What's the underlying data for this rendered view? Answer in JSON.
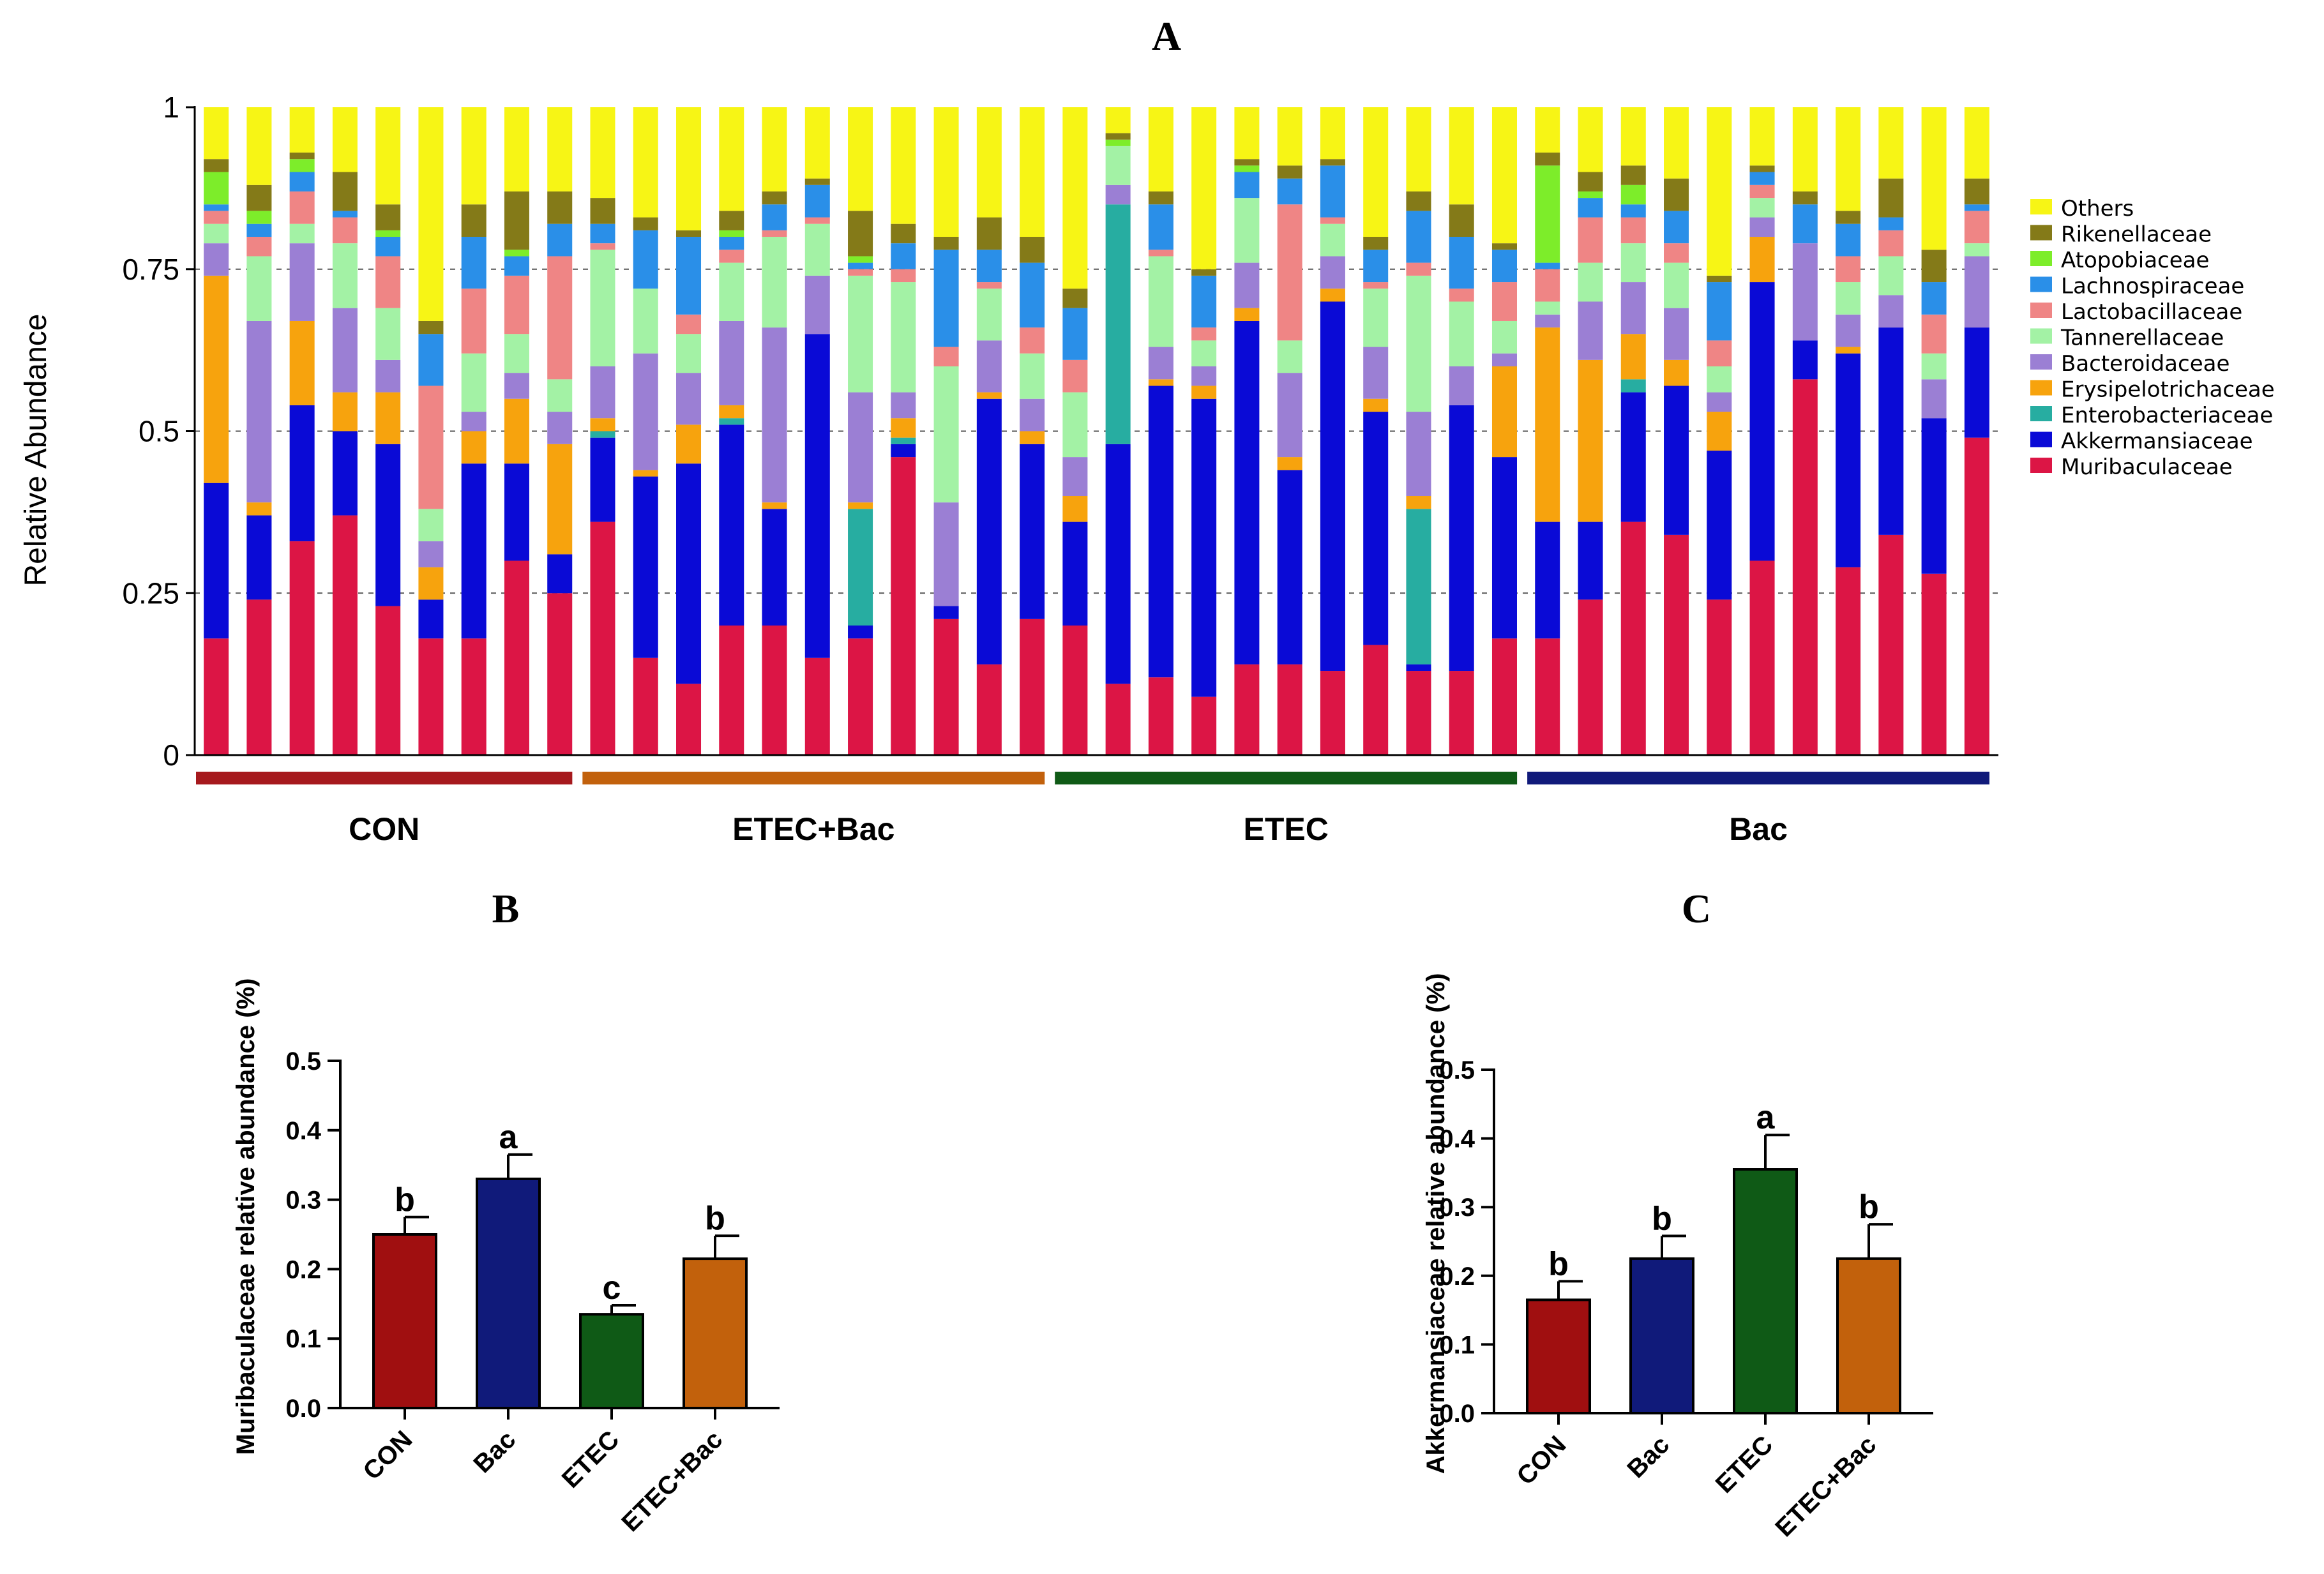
{
  "chart_data": [
    {
      "panel": "A",
      "type": "stacked-bar",
      "ylabel": "Relative Abundance",
      "ylim": [
        0,
        1
      ],
      "yticks": [
        0,
        0.25,
        0.5,
        0.75,
        1
      ],
      "ytick_labels": [
        "0",
        "0.25",
        "0.5",
        "0.75",
        "1"
      ],
      "grid": "dashed",
      "legend_position": "right",
      "groups": [
        {
          "name": "CON",
          "color": "#a6191d",
          "samples": 9
        },
        {
          "name": "ETEC+Bac",
          "color": "#c2610c",
          "samples": 11
        },
        {
          "name": "ETEC",
          "color": "#0f5a16",
          "samples": 11
        },
        {
          "name": "Bac",
          "color": "#101a7a",
          "samples": 11
        }
      ],
      "taxa": [
        {
          "name": "Muribaculaceae",
          "color": "#dc1545"
        },
        {
          "name": "Akkermansiaceae",
          "color": "#0a0ad6"
        },
        {
          "name": "Enterobacteriaceae",
          "color": "#27ada1"
        },
        {
          "name": "Erysipelotrichaceae",
          "color": "#f7a30d"
        },
        {
          "name": "Bacteroidaceae",
          "color": "#9b7fd4"
        },
        {
          "name": "Tannerellaceae",
          "color": "#a3f2a5"
        },
        {
          "name": "Lactobacillaceae",
          "color": "#ef8585"
        },
        {
          "name": "Lachnospiraceae",
          "color": "#2a8fe8"
        },
        {
          "name": "Atopobiaceae",
          "color": "#7ded2a"
        },
        {
          "name": "Rikenellaceae",
          "color": "#847a18"
        },
        {
          "name": "Others",
          "color": "#f7f515"
        }
      ],
      "legend_order": [
        "Others",
        "Rikenellaceae",
        "Atopobiaceae",
        "Lachnospiraceae",
        "Lactobacillaceae",
        "Tannerellaceae",
        "Bacteroidaceae",
        "Erysipelotrichaceae",
        "Enterobacteriaceae",
        "Akkermansiaceae",
        "Muribaculaceae"
      ],
      "samples_cumulative_tops": [
        [
          0.18,
          0.42,
          0.42,
          0.74,
          0.79,
          0.82,
          0.84,
          0.85,
          0.9,
          0.92
        ],
        [
          0.24,
          0.37,
          0.37,
          0.39,
          0.67,
          0.77,
          0.8,
          0.82,
          0.84,
          0.88
        ],
        [
          0.33,
          0.54,
          0.54,
          0.67,
          0.79,
          0.82,
          0.87,
          0.9,
          0.92,
          0.93
        ],
        [
          0.37,
          0.5,
          0.5,
          0.56,
          0.69,
          0.79,
          0.83,
          0.84,
          0.84,
          0.9
        ],
        [
          0.23,
          0.48,
          0.48,
          0.56,
          0.61,
          0.69,
          0.77,
          0.8,
          0.81,
          0.85
        ],
        [
          0.18,
          0.24,
          0.24,
          0.29,
          0.33,
          0.38,
          0.57,
          0.65,
          0.65,
          0.67
        ],
        [
          0.18,
          0.45,
          0.45,
          0.5,
          0.53,
          0.62,
          0.72,
          0.8,
          0.8,
          0.85
        ],
        [
          0.3,
          0.45,
          0.45,
          0.55,
          0.59,
          0.65,
          0.74,
          0.77,
          0.78,
          0.87
        ],
        [
          0.25,
          0.31,
          0.31,
          0.48,
          0.53,
          0.58,
          0.77,
          0.82,
          0.82,
          0.87
        ],
        [
          0.36,
          0.49,
          0.5,
          0.52,
          0.6,
          0.78,
          0.79,
          0.82,
          0.82,
          0.86
        ],
        [
          0.15,
          0.43,
          0.43,
          0.44,
          0.62,
          0.72,
          0.72,
          0.81,
          0.81,
          0.83
        ],
        [
          0.11,
          0.45,
          0.45,
          0.51,
          0.59,
          0.65,
          0.68,
          0.8,
          0.8,
          0.81
        ],
        [
          0.2,
          0.51,
          0.52,
          0.54,
          0.67,
          0.76,
          0.78,
          0.8,
          0.81,
          0.84
        ],
        [
          0.2,
          0.38,
          0.38,
          0.39,
          0.66,
          0.8,
          0.81,
          0.85,
          0.85,
          0.87
        ],
        [
          0.15,
          0.65,
          0.65,
          0.65,
          0.74,
          0.82,
          0.83,
          0.88,
          0.88,
          0.89
        ],
        [
          0.18,
          0.2,
          0.38,
          0.39,
          0.56,
          0.74,
          0.75,
          0.76,
          0.77,
          0.84
        ],
        [
          0.46,
          0.48,
          0.49,
          0.52,
          0.56,
          0.73,
          0.75,
          0.79,
          0.79,
          0.82
        ],
        [
          0.21,
          0.23,
          0.23,
          0.23,
          0.39,
          0.6,
          0.63,
          0.78,
          0.78,
          0.8
        ],
        [
          0.14,
          0.55,
          0.55,
          0.56,
          0.64,
          0.72,
          0.73,
          0.78,
          0.78,
          0.83
        ],
        [
          0.21,
          0.48,
          0.48,
          0.5,
          0.55,
          0.62,
          0.66,
          0.76,
          0.76,
          0.8
        ],
        [
          0.2,
          0.36,
          0.36,
          0.4,
          0.46,
          0.56,
          0.61,
          0.69,
          0.69,
          0.72
        ],
        [
          0.11,
          0.48,
          0.85,
          0.85,
          0.88,
          0.94,
          0.94,
          0.94,
          0.95,
          0.96
        ],
        [
          0.12,
          0.57,
          0.57,
          0.58,
          0.63,
          0.77,
          0.78,
          0.85,
          0.85,
          0.87
        ],
        [
          0.09,
          0.55,
          0.55,
          0.57,
          0.6,
          0.64,
          0.66,
          0.74,
          0.74,
          0.75
        ],
        [
          0.14,
          0.67,
          0.67,
          0.69,
          0.76,
          0.86,
          0.86,
          0.9,
          0.91,
          0.92
        ],
        [
          0.14,
          0.44,
          0.44,
          0.46,
          0.59,
          0.64,
          0.85,
          0.89,
          0.89,
          0.91
        ],
        [
          0.13,
          0.7,
          0.7,
          0.72,
          0.77,
          0.82,
          0.83,
          0.91,
          0.91,
          0.92
        ],
        [
          0.17,
          0.53,
          0.53,
          0.55,
          0.63,
          0.72,
          0.73,
          0.78,
          0.78,
          0.8
        ],
        [
          0.13,
          0.14,
          0.38,
          0.4,
          0.53,
          0.74,
          0.76,
          0.84,
          0.84,
          0.87
        ],
        [
          0.13,
          0.54,
          0.54,
          0.54,
          0.6,
          0.7,
          0.72,
          0.8,
          0.8,
          0.85
        ],
        [
          0.18,
          0.46,
          0.46,
          0.6,
          0.62,
          0.67,
          0.73,
          0.78,
          0.78,
          0.79
        ],
        [
          0.18,
          0.36,
          0.36,
          0.66,
          0.68,
          0.7,
          0.75,
          0.76,
          0.91,
          0.93
        ],
        [
          0.24,
          0.36,
          0.36,
          0.61,
          0.7,
          0.76,
          0.83,
          0.86,
          0.87,
          0.9
        ],
        [
          0.36,
          0.56,
          0.58,
          0.65,
          0.73,
          0.79,
          0.83,
          0.85,
          0.88,
          0.91
        ],
        [
          0.34,
          0.57,
          0.57,
          0.61,
          0.69,
          0.76,
          0.79,
          0.84,
          0.84,
          0.89
        ],
        [
          0.24,
          0.47,
          0.47,
          0.53,
          0.56,
          0.6,
          0.64,
          0.73,
          0.73,
          0.74
        ],
        [
          0.3,
          0.73,
          0.73,
          0.8,
          0.83,
          0.86,
          0.88,
          0.9,
          0.9,
          0.91
        ],
        [
          0.58,
          0.64,
          0.64,
          0.64,
          0.79,
          0.79,
          0.79,
          0.85,
          0.85,
          0.87
        ],
        [
          0.29,
          0.62,
          0.62,
          0.63,
          0.68,
          0.73,
          0.77,
          0.82,
          0.82,
          0.84
        ],
        [
          0.34,
          0.66,
          0.66,
          0.66,
          0.71,
          0.77,
          0.81,
          0.83,
          0.83,
          0.89
        ],
        [
          0.28,
          0.52,
          0.52,
          0.52,
          0.58,
          0.62,
          0.68,
          0.73,
          0.73,
          0.78
        ],
        [
          0.49,
          0.66,
          0.66,
          0.66,
          0.77,
          0.79,
          0.84,
          0.85,
          0.85,
          0.89
        ]
      ]
    },
    {
      "panel": "B",
      "type": "bar",
      "ylabel": "Muribaculaceae relative abundance (%)",
      "ylim": [
        0,
        0.5
      ],
      "yticks": [
        0.0,
        0.1,
        0.2,
        0.3,
        0.4,
        0.5
      ],
      "ytick_labels": [
        "0.0",
        "0.1",
        "0.2",
        "0.3",
        "0.4",
        "0.5"
      ],
      "categories": [
        "CON",
        "Bac",
        "ETEC",
        "ETEC+Bac"
      ],
      "values": [
        0.25,
        0.33,
        0.135,
        0.215
      ],
      "errors": [
        0.025,
        0.035,
        0.013,
        0.033
      ],
      "significance": [
        "b",
        "a",
        "c",
        "b"
      ],
      "colors": [
        "#a00f10",
        "#101a7a",
        "#0f5a16",
        "#c2610c"
      ]
    },
    {
      "panel": "C",
      "type": "bar",
      "ylabel": "Akkermansiaceae relative abundance (%)",
      "ylim": [
        0,
        0.5
      ],
      "yticks": [
        0.0,
        0.1,
        0.2,
        0.3,
        0.4,
        0.5
      ],
      "ytick_labels": [
        "0.0",
        "0.1",
        "0.2",
        "0.3",
        "0.4",
        "0.5"
      ],
      "categories": [
        "CON",
        "Bac",
        "ETEC",
        "ETEC+Bac"
      ],
      "values": [
        0.165,
        0.225,
        0.355,
        0.225
      ],
      "errors": [
        0.027,
        0.033,
        0.05,
        0.05
      ],
      "significance": [
        "b",
        "b",
        "a",
        "b"
      ],
      "colors": [
        "#a00f10",
        "#101a7a",
        "#0f5a16",
        "#c2610c"
      ]
    }
  ]
}
